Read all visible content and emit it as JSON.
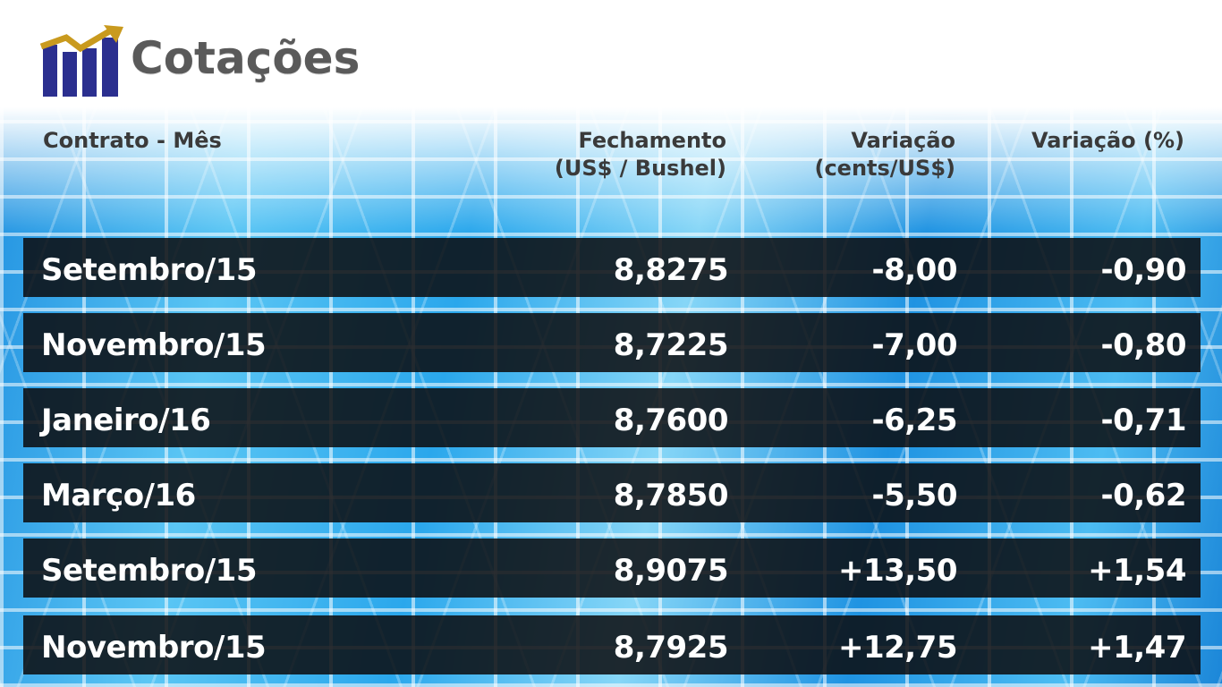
{
  "title": "Cotações",
  "logo": {
    "icon": "bar-chart-arrow-icon",
    "bar_color": "#2b2f8f",
    "arrow_color": "#c99a1e"
  },
  "headers": {
    "contract": "Contrato - Mês",
    "close_line1": "Fechamento",
    "close_line2": "(US$ / Bushel)",
    "change_line1": "Variação",
    "change_line2": "(cents/US$)",
    "change_pct": "Variação (%)"
  },
  "rows": [
    {
      "contract": "Setembro/15",
      "close": "8,8275",
      "change": "-8,00",
      "pct": "-0,90"
    },
    {
      "contract": "Novembro/15",
      "close": "8,7225",
      "change": "-7,00",
      "pct": "-0,80"
    },
    {
      "contract": "Janeiro/16",
      "close": "8,7600",
      "change": "-6,25",
      "pct": "-0,71"
    },
    {
      "contract": "Março/16",
      "close": "8,7850",
      "change": "-5,50",
      "pct": "-0,62"
    },
    {
      "contract": "Setembro/15",
      "close": "8,9075",
      "change": "+13,50",
      "pct": "+1,54"
    },
    {
      "contract": "Novembro/15",
      "close": "8,7925",
      "change": "+12,75",
      "pct": "+1,47"
    }
  ]
}
